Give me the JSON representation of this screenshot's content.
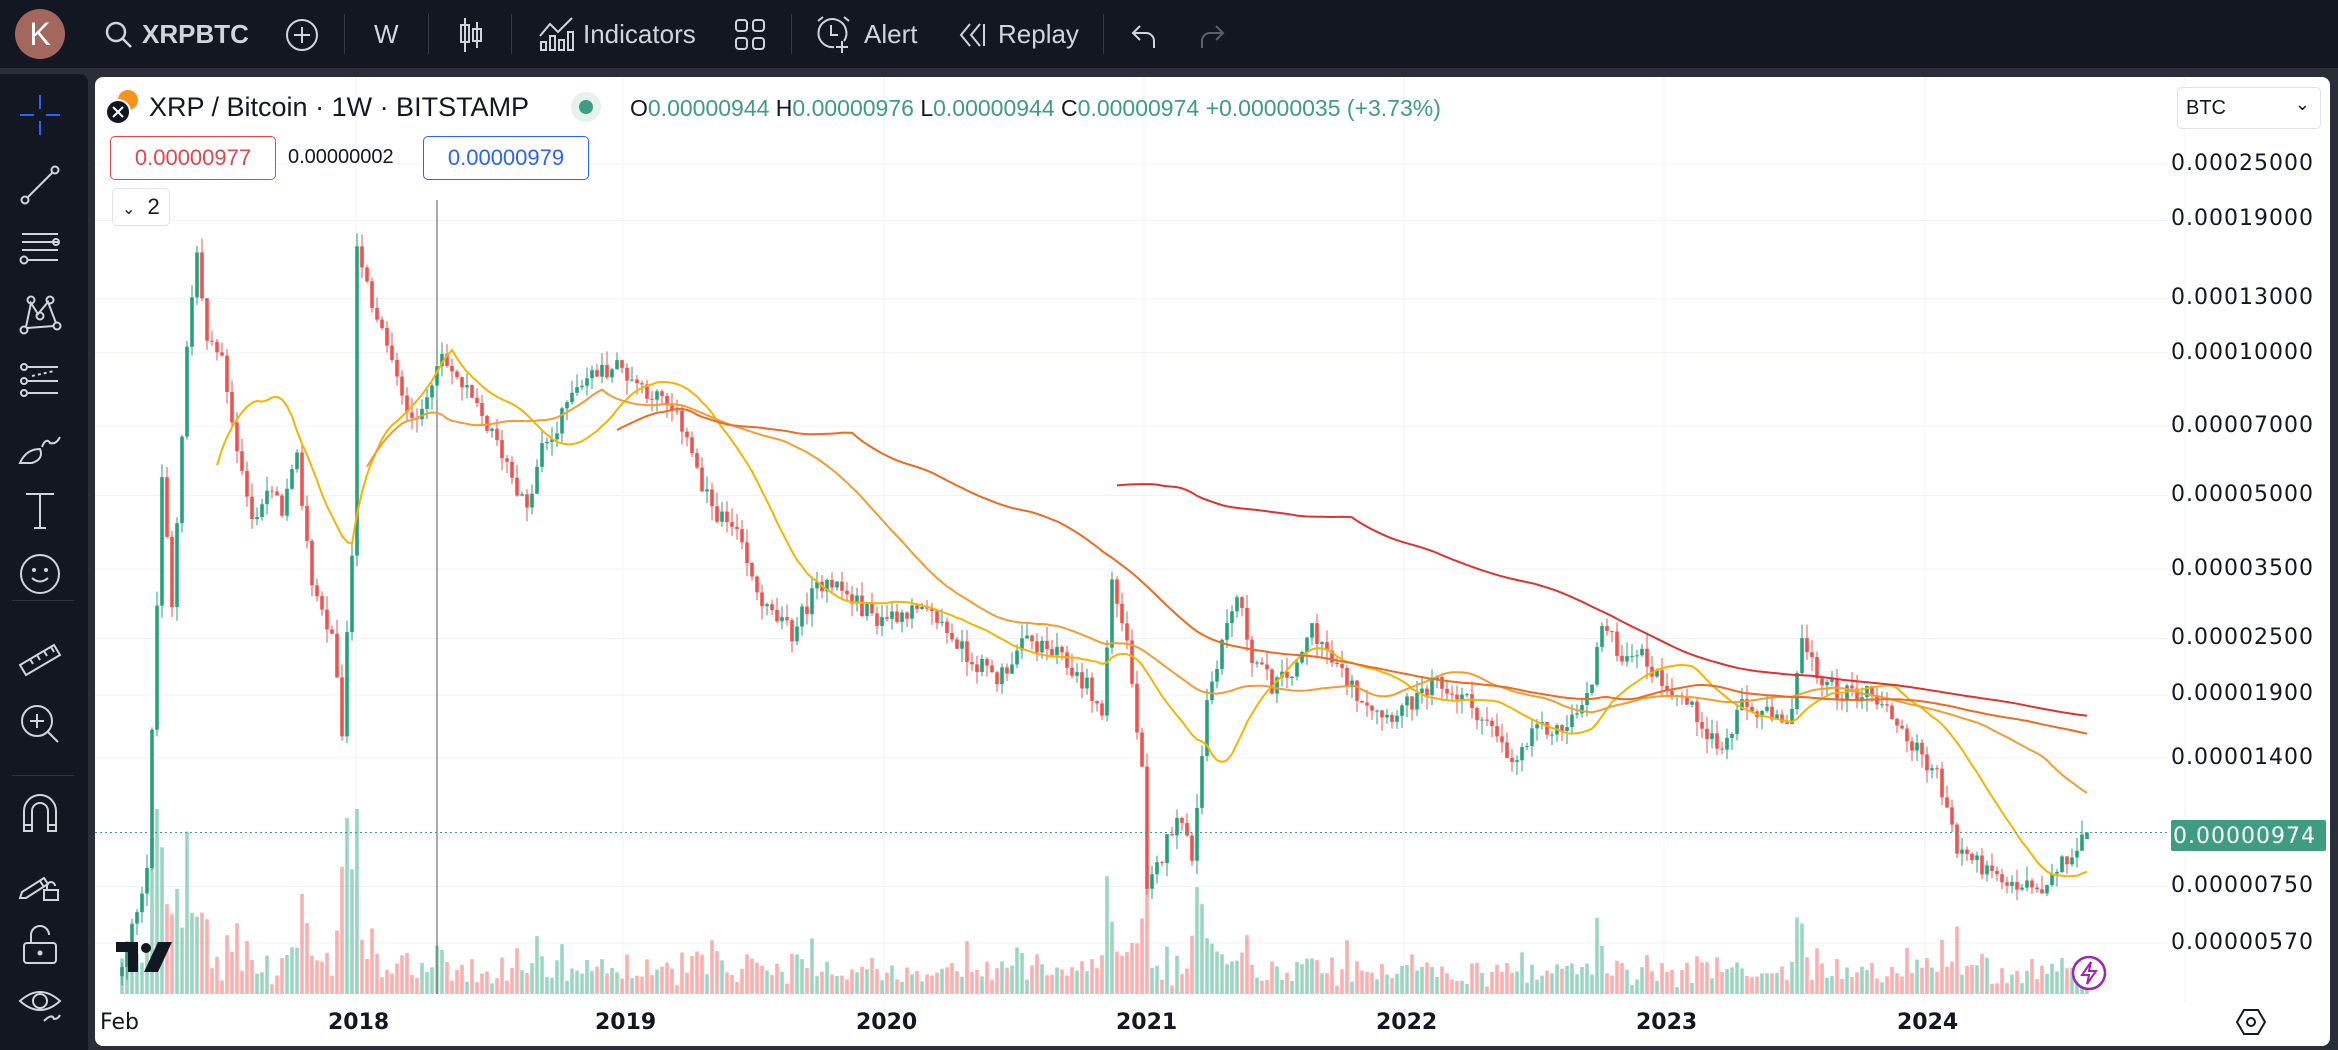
{
  "toolbar": {
    "avatar_letter": "K",
    "symbol": "XRPBTC",
    "interval": "W",
    "indicators_label": "Indicators",
    "alert_label": "Alert",
    "replay_label": "Replay"
  },
  "legend": {
    "title": "XRP / Bitcoin · 1W · BITSTAMP",
    "o_label": "O",
    "o": "0.00000944",
    "h_label": "H",
    "h": "0.00000976",
    "l_label": "L",
    "l": "0.00000944",
    "c_label": "C",
    "c": "0.00000974",
    "change": "+0.00000035 (+3.73%)",
    "bid": "0.00000977",
    "spread": "0.00000002",
    "ask": "0.00000979",
    "collapsed_count": "2"
  },
  "currency_select": "BTC",
  "price_axis": [
    "0.00025000",
    "0.00019000",
    "0.00013000",
    "0.00010000",
    "0.00007000",
    "0.00005000",
    "0.00003500",
    "0.00002500",
    "0.00001900",
    "0.00001400",
    "0.00000750",
    "0.00000570"
  ],
  "current_price": "0.00000974",
  "time_axis": [
    "Feb",
    "2018",
    "2019",
    "2020",
    "2021",
    "2022",
    "2023",
    "2024"
  ],
  "colors": {
    "up": "#26a17b",
    "down": "#ef5350",
    "accent": "#3e9c80",
    "bid": "#e0464b",
    "ask": "#2962ff"
  },
  "chart_data": {
    "type": "candlestick",
    "title": "XRP / Bitcoin · 1W · BITSTAMP",
    "scale": "log",
    "ylim": [
      5.2e-06,
      0.00027
    ],
    "x_unit": "weeks since Feb 2017",
    "close_anchors": [
      [
        0,
        5e-06
      ],
      [
        5,
        8.3e-06
      ],
      [
        8,
        5.5e-05
      ],
      [
        10,
        2.86e-05
      ],
      [
        13,
        0.000105
      ],
      [
        15,
        0.000162
      ],
      [
        17,
        0.000105
      ],
      [
        20,
        9.8e-05
      ],
      [
        23,
        6.3e-05
      ],
      [
        26,
        4.4e-05
      ],
      [
        29,
        5.1e-05
      ],
      [
        32,
        4.7e-05
      ],
      [
        35,
        5.9e-05
      ],
      [
        38,
        3.3e-05
      ],
      [
        42,
        2.47e-05
      ],
      [
        44,
        1.6e-05
      ],
      [
        46,
        3.8e-05
      ],
      [
        47,
        0.000174
      ],
      [
        50,
        0.000121
      ],
      [
        53,
        0.000105
      ],
      [
        56,
        7.9e-05
      ],
      [
        60,
        7.3e-05
      ],
      [
        63,
        9.8e-05
      ],
      [
        68,
        8.5e-05
      ],
      [
        72,
        7.3e-05
      ],
      [
        77,
        5.9e-05
      ],
      [
        81,
        4.6e-05
      ],
      [
        84,
        6.3e-05
      ],
      [
        87,
        6.8e-05
      ],
      [
        90,
        8.5e-05
      ],
      [
        95,
        9.1e-05
      ],
      [
        99,
        9.4e-05
      ],
      [
        104,
        8.5e-05
      ],
      [
        108,
        7.9e-05
      ],
      [
        113,
        6.8e-05
      ],
      [
        116,
        5.1e-05
      ],
      [
        119,
        4.6e-05
      ],
      [
        123,
        4.1e-05
      ],
      [
        126,
        3.3e-05
      ],
      [
        129,
        2.86e-05
      ],
      [
        134,
        2.56e-05
      ],
      [
        138,
        3.07e-05
      ],
      [
        141,
        3.4e-05
      ],
      [
        145,
        3.07e-05
      ],
      [
        151,
        2.75e-05
      ],
      [
        157,
        2.86e-05
      ],
      [
        163,
        2.75e-05
      ],
      [
        169,
        2.3e-05
      ],
      [
        175,
        2.06e-05
      ],
      [
        181,
        2.47e-05
      ],
      [
        187,
        2.3e-05
      ],
      [
        193,
        1.99e-05
      ],
      [
        196,
        1.72e-05
      ],
      [
        198,
        3.3e-05
      ],
      [
        201,
        2.47e-05
      ],
      [
        204,
        1.29e-05
      ],
      [
        205,
        7.2e-06
      ],
      [
        208,
        8.7e-06
      ],
      [
        211,
        1.08e-05
      ],
      [
        214,
        8.7e-06
      ],
      [
        217,
        1.85e-05
      ],
      [
        220,
        2.47e-05
      ],
      [
        223,
        3.07e-05
      ],
      [
        226,
        2.3e-05
      ],
      [
        230,
        1.99e-05
      ],
      [
        235,
        2.14e-05
      ],
      [
        238,
        2.66e-05
      ],
      [
        242,
        2.22e-05
      ],
      [
        247,
        1.92e-05
      ],
      [
        253,
        1.72e-05
      ],
      [
        259,
        1.85e-05
      ],
      [
        263,
        1.99e-05
      ],
      [
        269,
        1.85e-05
      ],
      [
        274,
        1.6e-05
      ],
      [
        278,
        1.34e-05
      ],
      [
        283,
        1.6e-05
      ],
      [
        288,
        1.6e-05
      ],
      [
        293,
        1.85e-05
      ],
      [
        296,
        2.66e-05
      ],
      [
        300,
        2.3e-05
      ],
      [
        303,
        2.38e-05
      ],
      [
        306,
        2.14e-05
      ],
      [
        311,
        1.92e-05
      ],
      [
        315,
        1.72e-05
      ],
      [
        320,
        1.44e-05
      ],
      [
        324,
        1.79e-05
      ],
      [
        329,
        1.72e-05
      ],
      [
        333,
        1.6e-05
      ],
      [
        336,
        2.47e-05
      ],
      [
        339,
        2.06e-05
      ],
      [
        344,
        1.92e-05
      ],
      [
        350,
        1.92e-05
      ],
      [
        354,
        1.72e-05
      ],
      [
        358,
        1.49e-05
      ],
      [
        363,
        1.29e-05
      ],
      [
        367,
        9e-06
      ],
      [
        372,
        8.3e-06
      ],
      [
        376,
        7.5e-06
      ],
      [
        381,
        7.5e-06
      ],
      [
        384,
        7.2e-06
      ],
      [
        388,
        8.3e-06
      ],
      [
        391,
        9e-06
      ],
      [
        393,
        9.74e-06
      ]
    ],
    "last_candle": {
      "open": 9.44e-06,
      "high": 9.76e-06,
      "low": 9.44e-06,
      "close": 9.74e-06
    },
    "moving_averages": [
      {
        "period": 20,
        "color": "#f5b400"
      },
      {
        "period": 50,
        "color": "#f39c32"
      },
      {
        "period": 100,
        "color": "#ee6a1f"
      },
      {
        "period": 200,
        "color": "#e0312f"
      }
    ],
    "volume": true
  }
}
